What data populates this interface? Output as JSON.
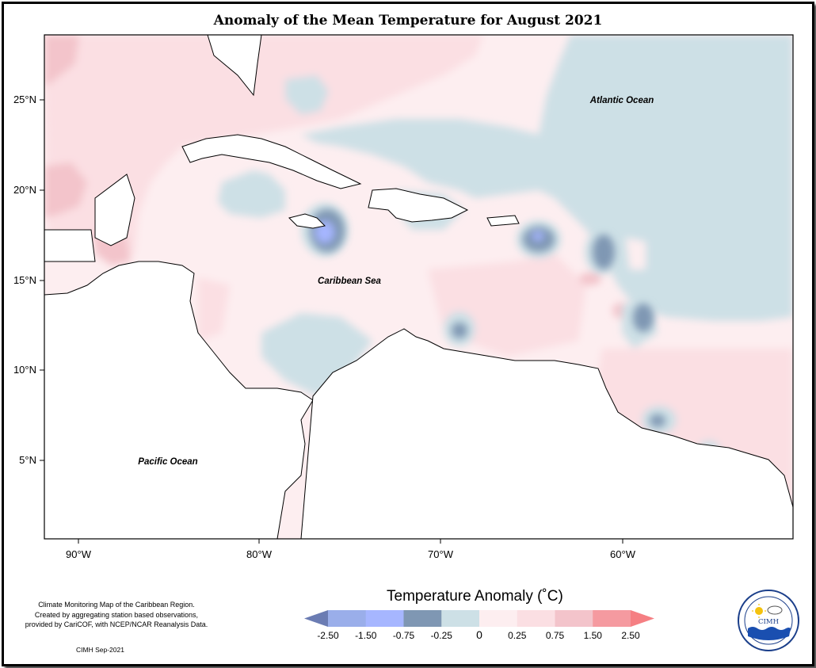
{
  "title": "Anomaly of the Mean Temperature for August 2021",
  "map": {
    "lat_ticks": [
      "25°N",
      "20°N",
      "15°N",
      "10°N",
      "5°N"
    ],
    "lon_ticks": [
      "90°W",
      "80°W",
      "70°W",
      "60°W"
    ],
    "labels": {
      "atlantic": "Atlantic Ocean",
      "caribbean": "Caribbean Sea",
      "pacific": "Pacific Ocean"
    }
  },
  "legend": {
    "title": "Temperature Anomaly (˚C)",
    "bins": [
      {
        "color": "#6b7cb3"
      },
      {
        "color": "#9aaeea"
      },
      {
        "color": "#a6b6ff"
      },
      {
        "color": "#7f97b3"
      },
      {
        "color": "#cde0e6"
      },
      {
        "color": "#fdeef0"
      },
      {
        "color": "#fbdfe3"
      },
      {
        "color": "#f3c4cb"
      },
      {
        "color": "#f59aa0"
      },
      {
        "color": "#f57f83"
      }
    ],
    "tick_labels": [
      "-2.50",
      "-1.50",
      "-0.75",
      "-0.25",
      "0",
      "0.25",
      "0.75",
      "1.50",
      "2.50"
    ]
  },
  "footnote": {
    "line1": "Climate Monitoring Map of the Caribbean Region.",
    "line2": "Created by aggregating station based observations,",
    "line3": "provided by CariCOF, with NCEP/NCAR Reanalysis Data."
  },
  "credit": "CIMH Sep-2021",
  "logo": {
    "text": "CIMH"
  }
}
